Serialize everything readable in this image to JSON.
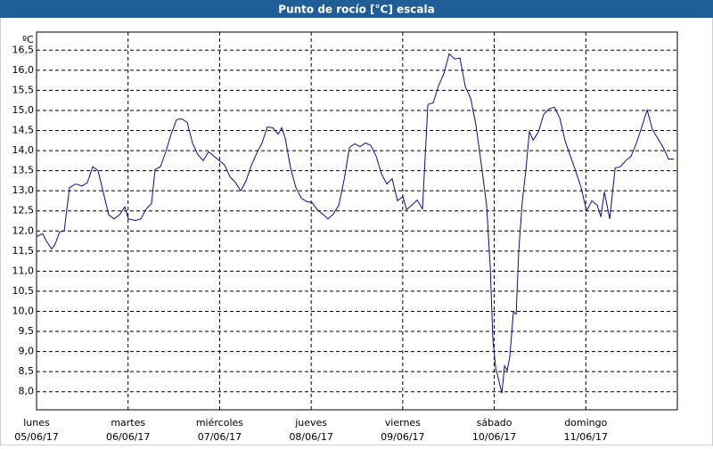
{
  "chart_data": {
    "type": "line",
    "title": "Punto de rocío [°C] escala",
    "y_label": "ºC",
    "xlim": [
      0,
      7
    ],
    "ylim": [
      7.55,
      16.95
    ],
    "grid": true,
    "xticks": [
      {
        "value": 0,
        "label": "lunes",
        "date": "05/06/17"
      },
      {
        "value": 1,
        "label": "martes",
        "date": "06/06/17"
      },
      {
        "value": 2,
        "label": "miércoles",
        "date": "07/06/17"
      },
      {
        "value": 3,
        "label": "jueves",
        "date": "08/06/17"
      },
      {
        "value": 4,
        "label": "viernes",
        "date": "09/06/17"
      },
      {
        "value": 5,
        "label": "sábado",
        "date": "10/06/17"
      },
      {
        "value": 6,
        "label": "domingo",
        "date": "11/06/17"
      }
    ],
    "yticks": [
      {
        "value": 8,
        "label": "8,0"
      },
      {
        "value": 8.5,
        "label": "8,5"
      },
      {
        "value": 9,
        "label": "9,0"
      },
      {
        "value": 9.5,
        "label": "9,5"
      },
      {
        "value": 10,
        "label": "10,0"
      },
      {
        "value": 10.5,
        "label": "10,5"
      },
      {
        "value": 11,
        "label": "11,0"
      },
      {
        "value": 11.5,
        "label": "11,5"
      },
      {
        "value": 12,
        "label": "12,0"
      },
      {
        "value": 12.5,
        "label": "12,5"
      },
      {
        "value": 13,
        "label": "13,0"
      },
      {
        "value": 13.5,
        "label": "13,5"
      },
      {
        "value": 14,
        "label": "14,0"
      },
      {
        "value": 14.5,
        "label": "14,5"
      },
      {
        "value": 15,
        "label": "15,0"
      },
      {
        "value": 15.5,
        "label": "15,5"
      },
      {
        "value": 16,
        "label": "16,0"
      },
      {
        "value": 16.5,
        "label": "16,5"
      }
    ],
    "series": [
      {
        "color": "#0a0a96",
        "x": [
          0,
          0.068,
          0.107,
          0.166,
          0.204,
          0.253,
          0.302,
          0.36,
          0.428,
          0.497,
          0.555,
          0.613,
          0.672,
          0.73,
          0.789,
          0.847,
          0.906,
          0.964,
          1.003,
          1.081,
          1.139,
          1.198,
          1.256,
          1.295,
          1.353,
          1.412,
          1.47,
          1.529,
          1.587,
          1.646,
          1.704,
          1.762,
          1.821,
          1.879,
          1.938,
          1.996,
          2.055,
          2.113,
          2.171,
          2.23,
          2.288,
          2.347,
          2.405,
          2.463,
          2.522,
          2.58,
          2.639,
          2.678,
          2.717,
          2.775,
          2.833,
          2.892,
          2.95,
          3.009,
          3.067,
          3.126,
          3.184,
          3.242,
          3.301,
          3.359,
          3.418,
          3.476,
          3.534,
          3.593,
          3.651,
          3.71,
          3.768,
          3.827,
          3.885,
          3.943,
          4.002,
          4.041,
          4.099,
          4.158,
          4.216,
          4.275,
          4.333,
          4.391,
          4.45,
          4.508,
          4.567,
          4.625,
          4.684,
          4.742,
          4.8,
          4.859,
          4.917,
          4.956,
          4.985,
          5.015,
          5.054,
          5.083,
          5.112,
          5.141,
          5.17,
          5.209,
          5.239,
          5.268,
          5.307,
          5.346,
          5.384,
          5.424,
          5.482,
          5.54,
          5.599,
          5.657,
          5.716,
          5.774,
          5.833,
          5.891,
          5.949,
          6.008,
          6.066,
          6.125,
          6.164,
          6.203,
          6.261,
          6.32,
          6.378,
          6.436,
          6.495,
          6.553,
          6.612,
          6.67,
          6.728,
          6.787,
          6.845,
          6.904,
          6.962
        ],
        "values": [
          11.86,
          11.93,
          11.75,
          11.55,
          11.68,
          11.98,
          12.0,
          13.08,
          13.17,
          13.12,
          13.2,
          13.6,
          13.5,
          12.95,
          12.4,
          12.3,
          12.4,
          12.6,
          12.3,
          12.26,
          12.3,
          12.55,
          12.68,
          13.53,
          13.6,
          13.97,
          14.41,
          14.77,
          14.79,
          14.7,
          14.19,
          13.9,
          13.75,
          13.97,
          13.86,
          13.75,
          13.64,
          13.35,
          13.21,
          13.0,
          13.24,
          13.64,
          13.93,
          14.19,
          14.59,
          14.57,
          14.41,
          14.57,
          14.3,
          13.57,
          13.08,
          12.82,
          12.73,
          12.71,
          12.53,
          12.42,
          12.3,
          12.42,
          12.64,
          13.26,
          14.08,
          14.17,
          14.1,
          14.19,
          14.13,
          13.86,
          13.42,
          13.17,
          13.3,
          12.75,
          12.86,
          12.53,
          12.64,
          12.77,
          12.55,
          15.15,
          15.19,
          15.61,
          15.92,
          16.41,
          16.28,
          16.3,
          15.59,
          15.3,
          14.64,
          13.64,
          12.64,
          11.08,
          9.31,
          8.6,
          8.24,
          7.96,
          8.64,
          8.53,
          8.87,
          9.98,
          9.93,
          11.53,
          12.75,
          13.53,
          14.48,
          14.26,
          14.46,
          14.9,
          15.04,
          15.08,
          14.81,
          14.24,
          13.86,
          13.48,
          13.08,
          12.5,
          12.75,
          12.64,
          12.35,
          12.97,
          12.3,
          13.57,
          13.6,
          13.75,
          13.86,
          14.19,
          14.59,
          15.01,
          14.52,
          14.3,
          14.08,
          13.79,
          13.79
        ]
      }
    ]
  }
}
